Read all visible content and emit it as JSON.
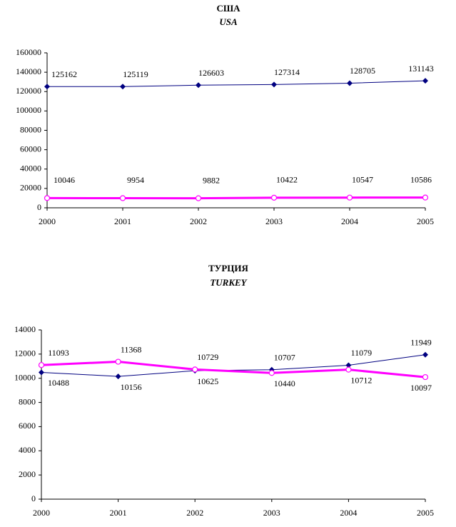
{
  "chart_data": [
    {
      "type": "line",
      "title": "США",
      "subtitle": "USA",
      "x": [
        2000,
        2001,
        2002,
        2003,
        2004,
        2005
      ],
      "xlim": [
        2000,
        2005
      ],
      "xticks": [
        2000,
        2001,
        2002,
        2003,
        2004,
        2005
      ],
      "ylim": [
        0,
        160000
      ],
      "yticks": [
        0,
        20000,
        40000,
        60000,
        80000,
        100000,
        120000,
        140000,
        160000
      ],
      "grid": false,
      "series": [
        {
          "color": "#000080",
          "marker": "diamond",
          "values": [
            125162,
            125119,
            126603,
            127314,
            128705,
            131143
          ]
        },
        {
          "color": "#ff00ff",
          "marker": "circle",
          "values": [
            10046,
            9954,
            9882,
            10422,
            10547,
            10586
          ]
        }
      ]
    },
    {
      "type": "line",
      "title": "ТУРЦИЯ",
      "subtitle": "TURKEY",
      "x": [
        2000,
        2001,
        2002,
        2003,
        2004,
        2005
      ],
      "xlim": [
        2000,
        2005
      ],
      "xticks": [
        2000,
        2001,
        2002,
        2003,
        2004,
        2005
      ],
      "ylim": [
        0,
        14000
      ],
      "yticks": [
        0,
        2000,
        4000,
        6000,
        8000,
        10000,
        12000,
        14000
      ],
      "grid": false,
      "series": [
        {
          "color": "#000080",
          "marker": "diamond",
          "values": [
            10488,
            10156,
            10625,
            10707,
            11079,
            11949
          ]
        },
        {
          "color": "#ff00ff",
          "marker": "circle",
          "values": [
            11093,
            11368,
            10729,
            10440,
            10712,
            10097
          ]
        }
      ]
    }
  ]
}
